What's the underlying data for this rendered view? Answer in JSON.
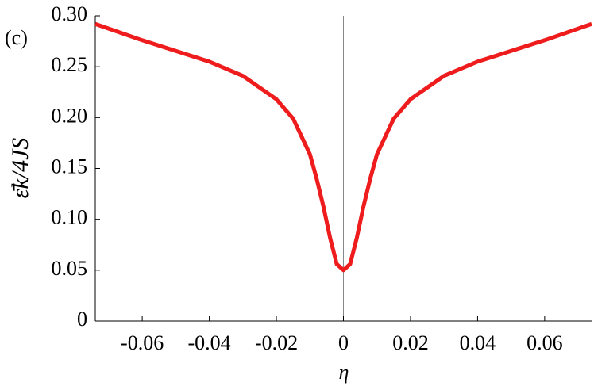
{
  "chart_data": {
    "type": "line",
    "panel_label": "(c)",
    "x_label": "η",
    "y_label": "ε̄k/4JS",
    "x": [
      -0.074,
      -0.06,
      -0.04,
      -0.03,
      -0.02,
      -0.015,
      -0.01,
      -0.008,
      -0.006,
      -0.004,
      -0.002,
      0,
      0.002,
      0.004,
      0.006,
      0.008,
      0.01,
      0.015,
      0.02,
      0.03,
      0.04,
      0.06,
      0.074
    ],
    "series": [
      {
        "color": "#ee1c1c",
        "values": [
          0.292,
          0.276,
          0.255,
          0.241,
          0.218,
          0.199,
          0.164,
          0.14,
          0.113,
          0.082,
          0.056,
          0.05,
          0.056,
          0.082,
          0.113,
          0.14,
          0.164,
          0.199,
          0.218,
          0.241,
          0.255,
          0.276,
          0.292
        ]
      }
    ],
    "xlim": [
      -0.074,
      0.074
    ],
    "ylim": [
      0,
      0.3
    ],
    "xticks": [
      -0.06,
      -0.04,
      -0.02,
      0,
      0.02,
      0.04,
      0.06
    ],
    "yticks": [
      0,
      0.05,
      {
        "value": 0.1,
        "label": "0.10"
      },
      0.15,
      {
        "value": 0.2,
        "label": "0.20"
      },
      0.25,
      {
        "value": 0.3,
        "label": "0.30"
      }
    ]
  }
}
